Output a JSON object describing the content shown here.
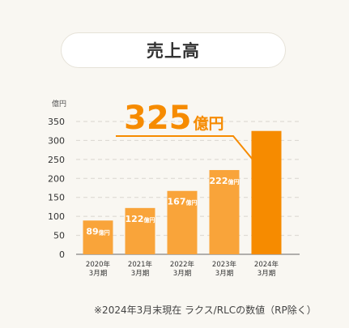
{
  "title": "売上高",
  "chart_data": {
    "type": "bar",
    "ylabel": "億円",
    "unit": "億円",
    "ylim": [
      0,
      350
    ],
    "yticks": [
      0,
      50,
      100,
      150,
      200,
      250,
      300,
      350
    ],
    "grid": true,
    "categories": [
      [
        "2020年",
        "3月期"
      ],
      [
        "2021年",
        "3月期"
      ],
      [
        "2022年",
        "3月期"
      ],
      [
        "2023年",
        "3月期"
      ],
      [
        "2024年",
        "3月期"
      ]
    ],
    "values": [
      89,
      122,
      167,
      222,
      325
    ],
    "highlight": {
      "value_label": "325",
      "unit_label": "億円"
    },
    "colors": {
      "bar": "#f9a43a",
      "highlight_bar": "#f68b00",
      "highlight_text": "#f68b00",
      "grid": "#d9d6cf",
      "axis": "#555555"
    }
  },
  "footnote": "※2024年3月末現在 ラクス/RLCの数値（RP除く）"
}
